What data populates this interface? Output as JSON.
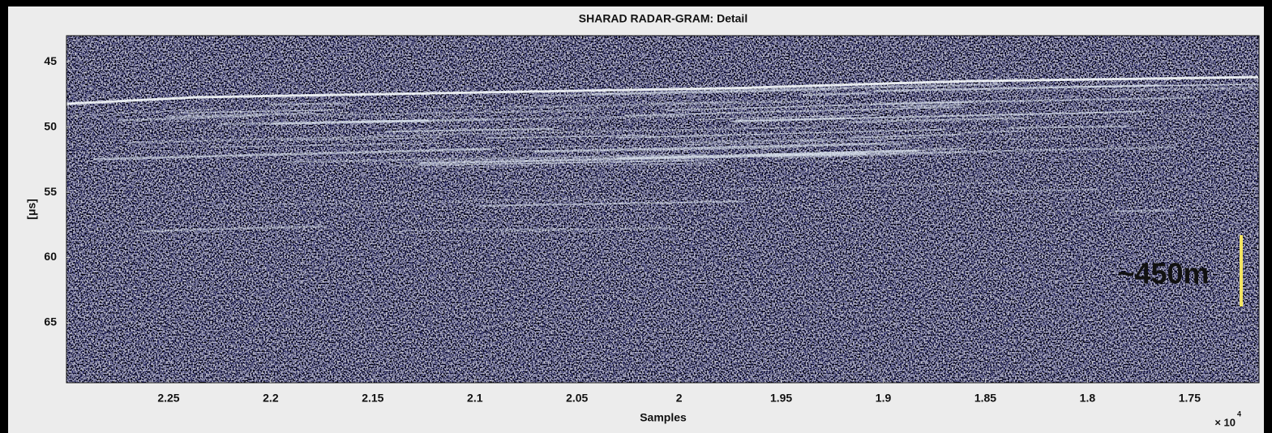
{
  "chart_data": {
    "type": "image",
    "title": "SHARAD RADAR-GRAM: Detail",
    "x_label": "Samples",
    "y_label": "[μs]",
    "x_multiplier": {
      "base": "× 10",
      "exponent": "4"
    },
    "xlim": [
      2.3,
      1.716
    ],
    "xticks": [
      2.25,
      2.2,
      2.15,
      2.1,
      2.05,
      2,
      1.95,
      1.9,
      1.85,
      1.8,
      1.75
    ],
    "ylim": [
      43,
      69.6
    ],
    "yticks": [
      45,
      50,
      55,
      60,
      65
    ],
    "annotation": "~450m",
    "annotation_color": "#f5e663"
  }
}
